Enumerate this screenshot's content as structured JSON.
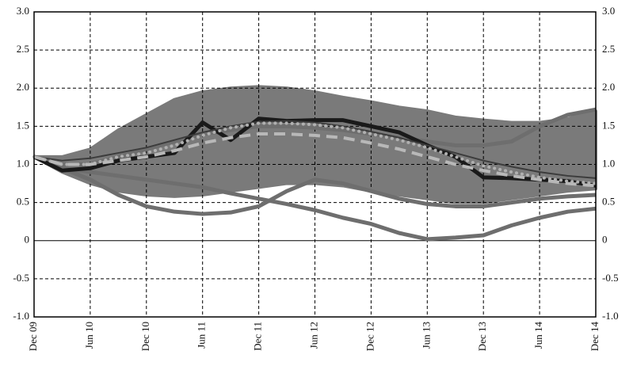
{
  "chart_data": {
    "type": "line",
    "categories": [
      "Dec 09",
      null,
      "Jun 10",
      null,
      "Dec 10",
      null,
      "Jun 11",
      null,
      "Dec 11",
      null,
      "Jun 12",
      null,
      "Dec 12",
      null,
      "Jun 13",
      null,
      "Dec 13",
      null,
      "Jun 14",
      null,
      "Dec 14"
    ],
    "band": {
      "color": "#7a7a7a",
      "upper": [
        1.1,
        1.1,
        1.2,
        1.45,
        1.65,
        1.85,
        1.95,
        2.0,
        2.02,
        2.0,
        1.95,
        1.88,
        1.82,
        1.75,
        1.7,
        1.62,
        1.58,
        1.55,
        1.55,
        1.6,
        1.7
      ],
      "lower": [
        1.1,
        0.9,
        0.75,
        0.65,
        0.6,
        0.58,
        0.6,
        0.65,
        0.7,
        0.75,
        0.75,
        0.72,
        0.65,
        0.6,
        0.55,
        0.5,
        0.5,
        0.55,
        0.6,
        0.65,
        0.68
      ]
    },
    "series": [
      {
        "color": "#6e6e6e",
        "style": "thick",
        "values": [
          1.1,
          0.95,
          0.8,
          0.6,
          0.45,
          0.38,
          0.35,
          0.37,
          0.45,
          0.65,
          0.8,
          0.75,
          0.65,
          0.55,
          0.48,
          0.45,
          0.45,
          0.5,
          0.55,
          0.58,
          0.6
        ]
      },
      {
        "color": "#6e6e6e",
        "style": "thick",
        "values": [
          1.1,
          0.95,
          0.9,
          0.85,
          0.8,
          0.75,
          0.7,
          0.62,
          0.55,
          0.48,
          0.4,
          0.3,
          0.22,
          0.1,
          0.02,
          0.04,
          0.07,
          0.2,
          0.3,
          0.38,
          0.42
        ]
      },
      {
        "color": "#6e6e6e",
        "style": "thick",
        "values": [
          1.1,
          1.0,
          1.0,
          1.1,
          1.2,
          1.3,
          1.4,
          1.45,
          1.5,
          1.5,
          1.48,
          1.45,
          1.4,
          1.35,
          1.3,
          1.25,
          1.25,
          1.3,
          1.5,
          1.65,
          1.72
        ]
      },
      {
        "color": "#1a1a1a",
        "style": "thick",
        "values": [
          1.1,
          0.92,
          0.95,
          1.05,
          1.1,
          1.15,
          1.55,
          1.32,
          1.6,
          1.57,
          1.58,
          1.58,
          1.5,
          1.42,
          1.25,
          1.1,
          0.83,
          0.82,
          0.8,
          0.78,
          0.72
        ]
      },
      {
        "color": "#3c3c3c",
        "style": "thin",
        "values": [
          1.1,
          1.05,
          1.08,
          1.15,
          1.22,
          1.32,
          1.42,
          1.5,
          1.56,
          1.57,
          1.55,
          1.5,
          1.43,
          1.35,
          1.25,
          1.15,
          1.05,
          0.97,
          0.9,
          0.85,
          0.82
        ]
      },
      {
        "color": "#b0b0b0",
        "style": "dotted",
        "values": [
          1.1,
          1.0,
          1.0,
          1.1,
          1.15,
          1.25,
          1.38,
          1.48,
          1.54,
          1.54,
          1.52,
          1.48,
          1.4,
          1.32,
          1.22,
          1.1,
          0.98,
          0.9,
          0.83,
          0.78,
          0.75
        ]
      },
      {
        "color": "#b8b8b8",
        "style": "dashed",
        "values": [
          1.1,
          1.0,
          1.0,
          1.05,
          1.1,
          1.18,
          1.28,
          1.35,
          1.4,
          1.4,
          1.38,
          1.35,
          1.28,
          1.2,
          1.1,
          1.0,
          0.92,
          0.85,
          0.8,
          0.75,
          0.72
        ]
      }
    ],
    "ylim": [
      -1,
      3
    ],
    "y2lim": [
      -1,
      3
    ],
    "yticks": [
      {
        "value": -1,
        "label": "-1.0"
      },
      -0.5,
      0,
      0.5,
      {
        "value": 1,
        "label": "1.0"
      },
      1.5,
      {
        "value": 2,
        "label": "2.0"
      },
      2.5,
      {
        "value": 3,
        "label": "3.0"
      }
    ],
    "y2ticks": [
      {
        "value": -1,
        "label": "-1.0"
      },
      -0.5,
      0,
      0.5,
      {
        "value": 1,
        "label": "1.0"
      },
      1.5,
      {
        "value": 2,
        "label": "2.0"
      },
      2.5,
      {
        "value": 3,
        "label": "3.0"
      }
    ],
    "grid": true
  }
}
